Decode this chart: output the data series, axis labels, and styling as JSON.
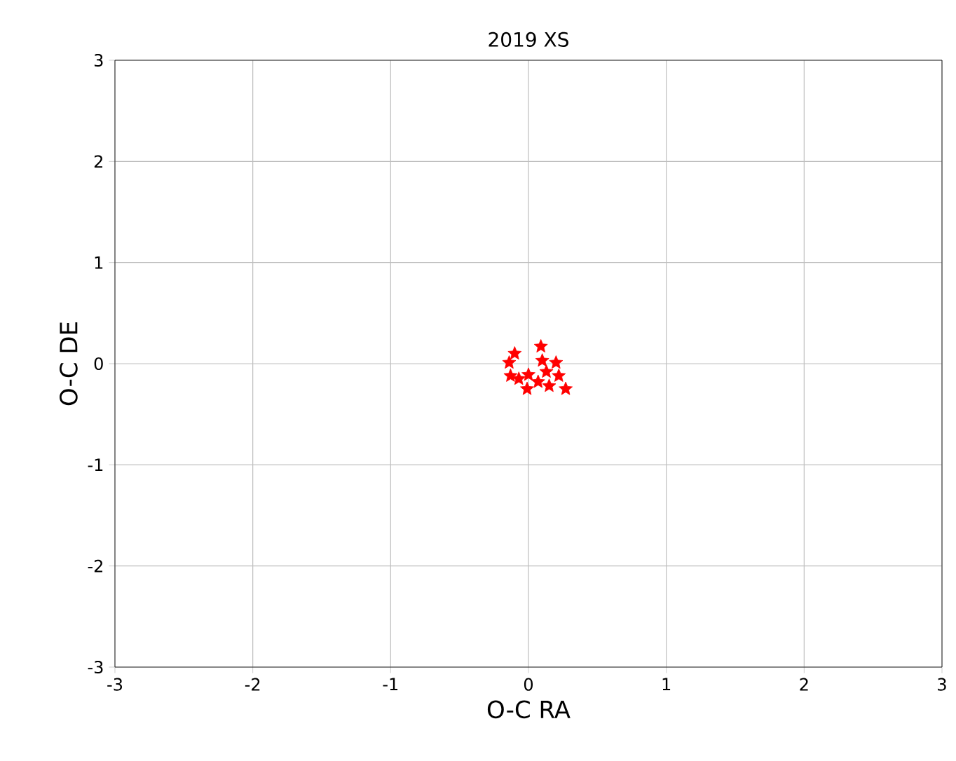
{
  "chart_data": {
    "type": "scatter",
    "title": "2019 XS",
    "xlabel": "O-C RA",
    "ylabel": "O-C DE",
    "x": [
      -0.1,
      -0.14,
      -0.13,
      0.09,
      0.1,
      0.0,
      -0.01,
      0.07,
      0.13,
      0.2,
      0.22,
      0.27,
      0.15,
      -0.07
    ],
    "values": [
      0.1,
      0.01,
      -0.12,
      0.17,
      0.03,
      -0.11,
      -0.25,
      -0.18,
      -0.08,
      0.01,
      -0.12,
      -0.25,
      -0.22,
      -0.15
    ],
    "color": "#ff0000",
    "marker": "star",
    "grid": true,
    "xlim": [
      -3,
      3
    ],
    "ylim": [
      -3,
      3
    ],
    "xticks": [
      -3,
      -2,
      -1,
      0,
      1,
      2,
      3
    ],
    "yticks": [
      -3,
      -2,
      -1,
      0,
      1,
      2,
      3
    ]
  }
}
